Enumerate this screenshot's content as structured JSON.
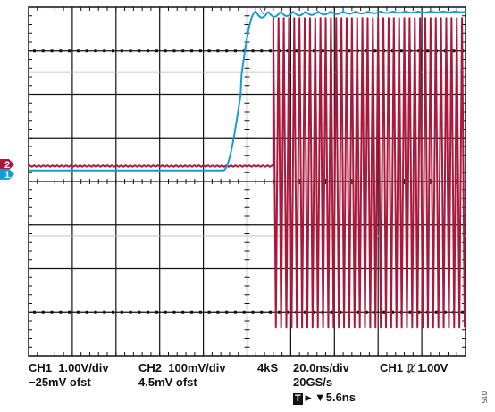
{
  "chart_data": {
    "type": "line",
    "title": "",
    "xlabel": "",
    "ylabel": "",
    "x_unit": "ns",
    "x_range": [
      -112,
      88
    ],
    "grid": {
      "divisions_x": 10,
      "divisions_y": 8
    },
    "series": [
      {
        "name": "1",
        "channel_marker": "1",
        "color": "#1a9bd0",
        "scale_v_per_div": 1.0,
        "ground_div": 0.25,
        "shape": "step",
        "low_div": 0.25,
        "high_div": 3.9,
        "transition_start_ns": -23,
        "transition_end_ns": -8,
        "ringing_amplitude_div": 0.15
      },
      {
        "name": "2",
        "channel_marker": "2",
        "color": "#a8193c",
        "scale_v_per_div": 0.1,
        "ground_div": 0.35,
        "shape": "burst",
        "baseline_div": 0.35,
        "burst_start_ns": 0,
        "burst_high_div": 3.75,
        "burst_low_div": -3.35,
        "burst_period_ns": 2.4
      }
    ],
    "annotations": [
      {
        "label": "trigger-marker",
        "x_ns": -4,
        "symbol": "▽"
      }
    ]
  },
  "readouts": {
    "ch1_scale": "CH1  1.00V/div",
    "ch1_offset": "−25mV ofst",
    "ch2_scale": "CH2  100mV/div",
    "ch2_offset": "4.5mV ofst",
    "record_length": "4kS",
    "timebase": "20.0ns/div",
    "sample_rate": "20GS/s",
    "trigger_setting": "CH1 ⎍̸ 1.00V",
    "trigger_badge": "T",
    "trigger_position": "▸ ▼5.6ns"
  },
  "figure_id": "015",
  "colors": {
    "ch1": "#1a9bd0",
    "ch2": "#a8193c",
    "grid": "#111111",
    "dots": "#111111"
  }
}
